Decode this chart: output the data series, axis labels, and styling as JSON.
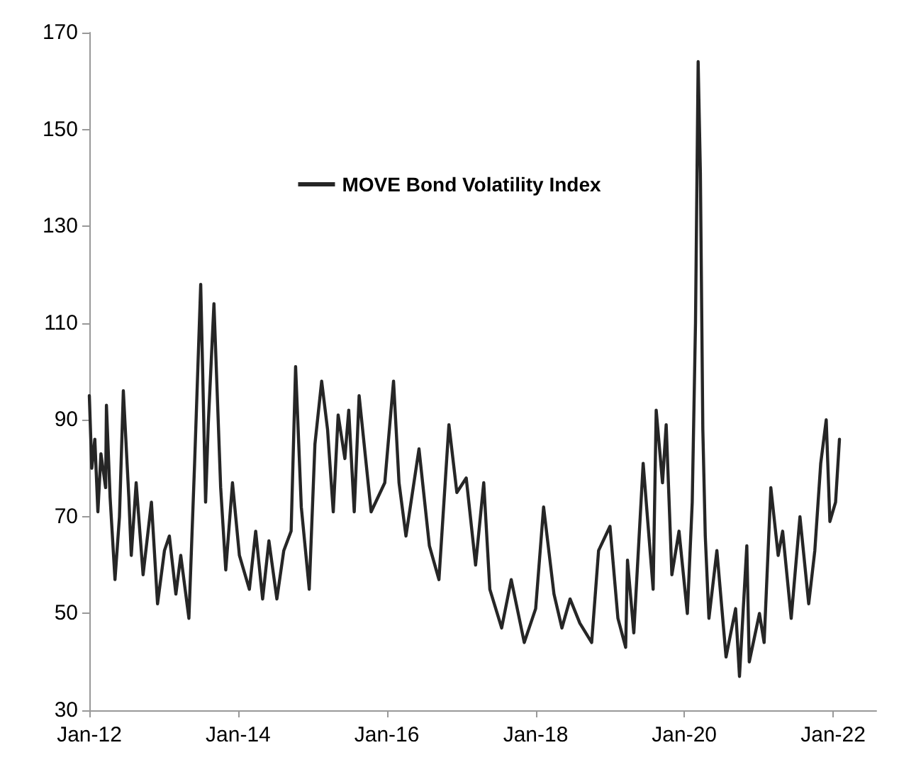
{
  "chart_data": {
    "type": "line",
    "x": [
      "2012-01-01",
      "2012-01-13",
      "2012-01-28",
      "2012-02-12",
      "2012-02-27",
      "2012-03-21",
      "2012-03-25",
      "2012-04-12",
      "2012-05-06",
      "2012-05-28",
      "2012-06-16",
      "2012-07-13",
      "2012-07-25",
      "2012-08-18",
      "2012-09-21",
      "2012-11-01",
      "2012-12-01",
      "2013-01-04",
      "2013-01-28",
      "2013-03-01",
      "2013-03-25",
      "2013-05-04",
      "2013-06-01",
      "2013-07-01",
      "2013-07-25",
      "2013-08-07",
      "2013-09-04",
      "2013-10-07",
      "2013-11-01",
      "2013-12-04",
      "2014-01-07",
      "2014-02-25",
      "2014-03-28",
      "2014-05-01",
      "2014-06-01",
      "2014-07-10",
      "2014-08-13",
      "2014-09-18",
      "2014-10-10",
      "2014-11-07",
      "2014-12-16",
      "2015-01-13",
      "2015-02-15",
      "2015-03-16",
      "2015-04-13",
      "2015-05-07",
      "2015-06-09",
      "2015-06-28",
      "2015-07-25",
      "2015-08-18",
      "2015-10-16",
      "2015-12-22",
      "2016-02-03",
      "2016-03-01",
      "2016-04-04",
      "2016-06-07",
      "2016-07-28",
      "2016-09-13",
      "2016-11-01",
      "2016-12-10",
      "2017-01-25",
      "2017-03-12",
      "2017-04-21",
      "2017-05-21",
      "2017-07-18",
      "2017-09-03",
      "2017-11-06",
      "2018-01-01",
      "2018-02-09",
      "2018-04-01",
      "2018-05-10",
      "2018-06-19",
      "2018-08-06",
      "2018-10-03",
      "2018-11-06",
      "2019-01-01",
      "2019-02-09",
      "2019-03-19",
      "2019-03-28",
      "2019-04-28",
      "2019-06-13",
      "2019-08-01",
      "2019-08-16",
      "2019-09-16",
      "2019-10-04",
      "2019-11-01",
      "2019-12-06",
      "2020-01-16",
      "2020-02-09",
      "2020-02-25",
      "2020-03-09",
      "2020-03-20",
      "2020-04-01",
      "2020-04-13",
      "2020-05-01",
      "2020-06-09",
      "2020-07-24",
      "2020-09-09",
      "2020-09-28",
      "2020-11-03",
      "2020-11-15",
      "2021-01-04",
      "2021-01-27",
      "2021-03-01",
      "2021-04-06",
      "2021-04-28",
      "2021-06-09",
      "2021-07-22",
      "2021-09-03",
      "2021-10-03",
      "2021-11-01",
      "2021-11-28",
      "2021-12-16",
      "2022-01-13",
      "2022-02-01"
    ],
    "series": [
      {
        "name": "MOVE Bond Volatility Index",
        "color": "#262626",
        "values": [
          95,
          80,
          86,
          71,
          83,
          76,
          93,
          74,
          57,
          70,
          96,
          74,
          62,
          77,
          58,
          73,
          52,
          63,
          66,
          54,
          62,
          49,
          81,
          118,
          73,
          89,
          114,
          76,
          59,
          77,
          62,
          55,
          67,
          53,
          65,
          53,
          63,
          67,
          101,
          72,
          55,
          85,
          98,
          88,
          71,
          91,
          82,
          92,
          71,
          95,
          71,
          77,
          98,
          77,
          66,
          84,
          64,
          57,
          89,
          75,
          78,
          60,
          77,
          55,
          47,
          57,
          44,
          51,
          72,
          54,
          47,
          53,
          48,
          44,
          63,
          68,
          49,
          43,
          61,
          46,
          81,
          55,
          92,
          77,
          89,
          58,
          67,
          50,
          73,
          110,
          164,
          141,
          88,
          66,
          49,
          63,
          41,
          51,
          37,
          64,
          40,
          50,
          44,
          76,
          62,
          67,
          49,
          70,
          52,
          63,
          81,
          90,
          69,
          73,
          86
        ]
      }
    ],
    "xlim": [
      "2012-01-01",
      "2022-08-01"
    ],
    "xticks": [
      {
        "value": "2012-01-01",
        "label": "Jan-12"
      },
      {
        "value": "2014-01-01",
        "label": "Jan-14"
      },
      {
        "value": "2016-01-01",
        "label": "Jan-16"
      },
      {
        "value": "2018-01-01",
        "label": "Jan-18"
      },
      {
        "value": "2020-01-01",
        "label": "Jan-20"
      },
      {
        "value": "2022-01-01",
        "label": "Jan-22"
      }
    ],
    "ylim": [
      30,
      170
    ],
    "yticks": [
      30,
      50,
      70,
      90,
      110,
      130,
      150,
      170
    ],
    "legend": "top",
    "grid": false,
    "marker": "none",
    "line_style": "solid"
  }
}
